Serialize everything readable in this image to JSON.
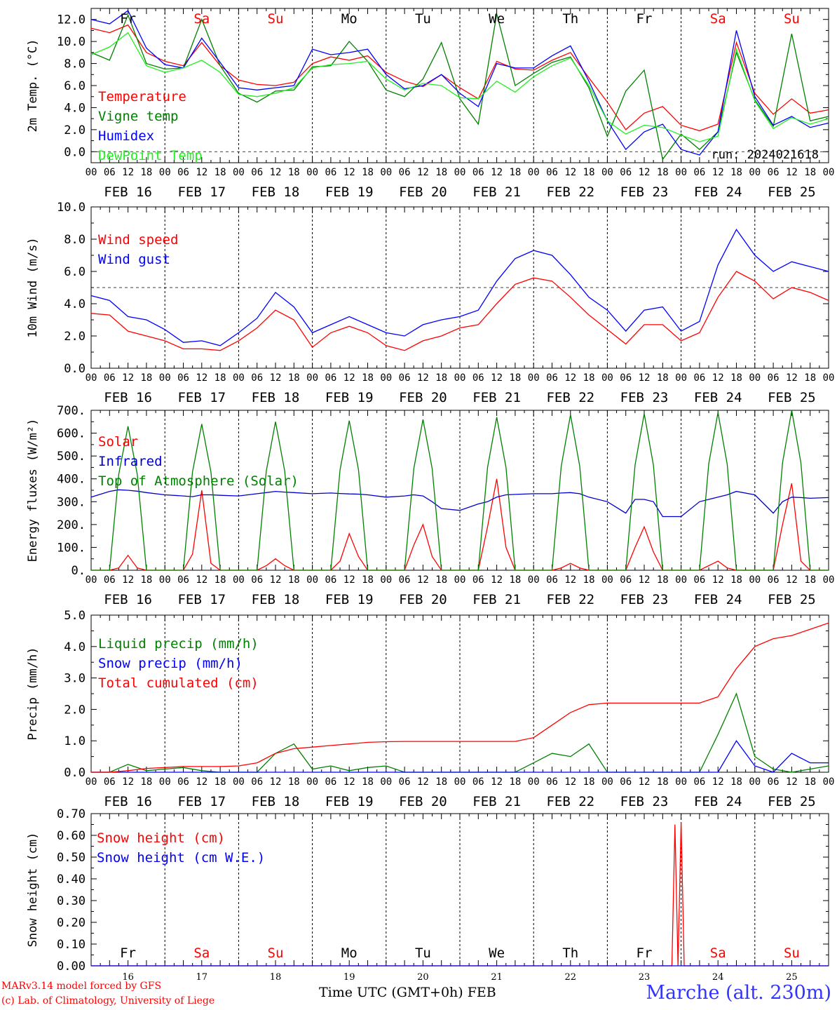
{
  "colors": {
    "red": "#ff0000",
    "green": "#008000",
    "blue": "#0000ff",
    "lightgreen": "#22ee22",
    "darkblue": "#0000cc",
    "purple": "#800080"
  },
  "day_labels": [
    {
      "text": "Fr",
      "color": "#000000"
    },
    {
      "text": "Sa",
      "color": "#ff0000"
    },
    {
      "text": "Su",
      "color": "#ff0000"
    },
    {
      "text": "Mo",
      "color": "#000000"
    },
    {
      "text": "Tu",
      "color": "#000000"
    },
    {
      "text": "We",
      "color": "#000000"
    },
    {
      "text": "Th",
      "color": "#000000"
    },
    {
      "text": "Fr",
      "color": "#000000"
    },
    {
      "text": "Sa",
      "color": "#ff0000"
    },
    {
      "text": "Su",
      "color": "#ff0000"
    }
  ],
  "date_labels": [
    "FEB 16",
    "FEB 17",
    "FEB 18",
    "FEB 19",
    "FEB 20",
    "FEB 21",
    "FEB 22",
    "FEB 23",
    "FEB 24",
    "FEB 25"
  ],
  "hour_ticks": [
    "00",
    "06",
    "12",
    "18"
  ],
  "bottom_dates": [
    "16",
    "17",
    "18",
    "19",
    "20",
    "21",
    "22",
    "23",
    "24",
    "25"
  ],
  "run_label": "run: 2024021618",
  "footer": {
    "credit_line1": "MARv3.14 model forced by GFS",
    "credit_line2": "(c) Lab. of Climatology, University of Liege",
    "xaxis_title": "Time UTC (GMT+0h) FEB",
    "station": "Marche (alt. 230m)"
  },
  "chart_data": [
    {
      "type": "line",
      "ylabel": "2m Temp. (°C)",
      "ylim": [
        -1.0,
        13.0
      ],
      "yticks": [
        "0.0",
        "2.0",
        "4.0",
        "6.0",
        "8.0",
        "10.0",
        "12.0"
      ],
      "x_unit": "hours since FEB 16 00 UTC",
      "x": [
        0,
        6,
        12,
        18,
        24,
        30,
        36,
        42,
        48,
        54,
        60,
        66,
        72,
        78,
        84,
        90,
        96,
        102,
        108,
        114,
        120,
        126,
        132,
        138,
        144,
        150,
        156,
        162,
        168,
        174,
        180,
        186,
        192,
        198,
        204,
        210,
        216,
        222,
        228,
        234,
        240
      ],
      "reference_line": 0,
      "series": [
        {
          "name": "Temperature",
          "color": "#ff0000",
          "values": [
            11.2,
            10.8,
            11.5,
            9.0,
            8.2,
            7.8,
            9.9,
            7.8,
            6.5,
            6.1,
            6.0,
            6.3,
            8.0,
            8.6,
            8.3,
            8.7,
            7.2,
            6.4,
            5.9,
            7.0,
            5.8,
            4.8,
            8.2,
            7.5,
            7.4,
            8.3,
            9.0,
            6.7,
            4.5,
            2.0,
            3.5,
            4.1,
            2.4,
            1.9,
            2.5,
            9.9,
            5.3,
            3.4,
            4.8,
            3.5,
            3.8
          ]
        },
        {
          "name": "Vigne temp",
          "color": "#008000",
          "values": [
            9.0,
            8.3,
            12.4,
            8.0,
            7.5,
            7.6,
            12.0,
            7.8,
            5.3,
            4.5,
            5.5,
            5.6,
            7.7,
            7.8,
            10.0,
            8.2,
            5.6,
            5.0,
            6.6,
            9.9,
            4.8,
            2.5,
            12.5,
            6.0,
            7.1,
            8.1,
            8.6,
            5.8,
            1.4,
            5.5,
            7.4,
            -0.7,
            1.6,
            0.2,
            1.8,
            9.0,
            4.7,
            2.3,
            10.7,
            2.8,
            3.2
          ]
        },
        {
          "name": "Humidex",
          "color": "#0000ff",
          "values": [
            12.0,
            11.6,
            12.8,
            9.4,
            7.9,
            7.6,
            10.3,
            8.1,
            5.8,
            5.6,
            5.8,
            6.0,
            9.3,
            8.8,
            9.0,
            9.3,
            7.0,
            5.7,
            6.0,
            7.0,
            5.3,
            4.1,
            8.0,
            7.6,
            7.6,
            8.7,
            9.6,
            6.4,
            2.8,
            0.2,
            1.8,
            2.5,
            0.2,
            -0.3,
            1.8,
            11.0,
            5.0,
            2.4,
            3.2,
            2.2,
            2.6
          ]
        },
        {
          "name": "DewPoint Temp",
          "color": "#22ee22",
          "values": [
            8.8,
            9.5,
            10.8,
            7.8,
            7.2,
            7.6,
            8.3,
            7.2,
            5.2,
            5.0,
            5.3,
            5.8,
            7.6,
            7.9,
            8.0,
            8.2,
            6.6,
            5.6,
            6.2,
            6.0,
            4.9,
            4.8,
            6.4,
            5.4,
            6.8,
            7.8,
            8.5,
            6.0,
            2.8,
            1.6,
            2.4,
            2.2,
            1.5,
            0.9,
            1.4,
            9.3,
            4.6,
            2.1,
            3.1,
            2.5,
            3.0
          ]
        }
      ]
    },
    {
      "type": "line",
      "ylabel": "10m Wind (m/s)",
      "ylim": [
        0.0,
        10.0
      ],
      "yticks": [
        "0.0",
        "2.0",
        "4.0",
        "6.0",
        "8.0",
        "10.0"
      ],
      "x_unit": "hours since FEB 16 00 UTC",
      "x": [
        0,
        6,
        12,
        18,
        24,
        30,
        36,
        42,
        48,
        54,
        60,
        66,
        72,
        78,
        84,
        90,
        96,
        102,
        108,
        114,
        120,
        126,
        132,
        138,
        144,
        150,
        156,
        162,
        168,
        174,
        180,
        186,
        192,
        198,
        204,
        210,
        216,
        222,
        228,
        234,
        240
      ],
      "reference_line": 5,
      "series": [
        {
          "name": "Wind speed",
          "color": "#ff0000",
          "values": [
            3.4,
            3.3,
            2.3,
            2.0,
            1.7,
            1.2,
            1.2,
            1.1,
            1.7,
            2.5,
            3.6,
            3.0,
            1.3,
            2.2,
            2.6,
            2.2,
            1.4,
            1.1,
            1.7,
            2.0,
            2.5,
            2.7,
            4.0,
            5.2,
            5.6,
            5.4,
            4.4,
            3.3,
            2.4,
            1.5,
            2.7,
            2.7,
            1.7,
            2.2,
            4.4,
            6.0,
            5.4,
            4.3,
            5.0,
            4.7,
            4.2
          ]
        },
        {
          "name": "Wind gust",
          "color": "#0000ff",
          "values": [
            4.5,
            4.2,
            3.2,
            3.0,
            2.4,
            1.6,
            1.7,
            1.4,
            2.2,
            3.1,
            4.7,
            3.8,
            2.2,
            2.7,
            3.2,
            2.7,
            2.2,
            2.0,
            2.7,
            3.0,
            3.2,
            3.6,
            5.4,
            6.8,
            7.3,
            7.0,
            5.8,
            4.4,
            3.6,
            2.3,
            3.6,
            3.8,
            2.3,
            2.9,
            6.4,
            8.6,
            7.0,
            6.0,
            6.6,
            6.3,
            6.0
          ]
        }
      ]
    },
    {
      "type": "line",
      "ylabel": "Energy fluxes (W/m²)",
      "ylim": [
        0,
        700
      ],
      "yticks": [
        "0.",
        "100.",
        "200.",
        "300.",
        "400.",
        "500.",
        "600.",
        "700."
      ],
      "x_unit": "hours since FEB 16 00 UTC",
      "x": [
        0,
        6,
        9,
        12,
        15,
        18,
        24,
        30,
        33,
        36,
        39,
        42,
        48,
        54,
        57,
        60,
        63,
        66,
        72,
        78,
        81,
        84,
        87,
        90,
        96,
        102,
        105,
        108,
        111,
        114,
        120,
        126,
        129,
        132,
        135,
        138,
        144,
        150,
        153,
        156,
        159,
        162,
        168,
        174,
        177,
        180,
        183,
        186,
        192,
        198,
        201,
        204,
        207,
        210,
        216,
        222,
        225,
        228,
        231,
        234,
        240
      ],
      "series": [
        {
          "name": "Solar",
          "color": "#ff0000",
          "values": [
            0,
            0,
            10,
            65,
            10,
            0,
            0,
            0,
            70,
            350,
            30,
            0,
            0,
            0,
            20,
            50,
            20,
            0,
            0,
            0,
            40,
            160,
            60,
            0,
            0,
            0,
            110,
            200,
            60,
            0,
            0,
            0,
            190,
            400,
            100,
            0,
            0,
            0,
            10,
            30,
            10,
            0,
            0,
            0,
            100,
            190,
            80,
            0,
            0,
            0,
            20,
            40,
            10,
            0,
            0,
            0,
            200,
            380,
            40,
            0,
            0
          ]
        },
        {
          "name": "Infrared",
          "color": "#0000cc",
          "values": [
            320,
            345,
            352,
            350,
            346,
            340,
            330,
            325,
            322,
            330,
            330,
            328,
            325,
            335,
            340,
            345,
            342,
            340,
            335,
            338,
            336,
            334,
            333,
            330,
            320,
            325,
            330,
            325,
            300,
            270,
            262,
            290,
            300,
            320,
            330,
            332,
            335,
            335,
            338,
            340,
            335,
            320,
            300,
            250,
            310,
            310,
            300,
            235,
            235,
            300,
            310,
            320,
            330,
            345,
            330,
            250,
            300,
            320,
            318,
            315,
            318
          ]
        },
        {
          "name": "Top of Atmosphere (Solar)",
          "color": "#008000",
          "values": [
            0,
            0,
            420,
            630,
            420,
            0,
            0,
            0,
            430,
            640,
            430,
            0,
            0,
            0,
            435,
            650,
            435,
            0,
            0,
            0,
            440,
            655,
            440,
            0,
            0,
            0,
            445,
            660,
            445,
            0,
            0,
            0,
            450,
            670,
            450,
            0,
            0,
            0,
            455,
            680,
            455,
            0,
            0,
            0,
            460,
            685,
            460,
            0,
            0,
            0,
            465,
            690,
            465,
            0,
            0,
            0,
            470,
            700,
            470,
            0,
            0
          ]
        }
      ]
    },
    {
      "type": "line",
      "ylabel": "Precip (mm/h)",
      "ylim": [
        0.0,
        5.0
      ],
      "yticks": [
        "0.0",
        "1.0",
        "2.0",
        "3.0",
        "4.0",
        "5.0"
      ],
      "x_unit": "hours since FEB 16 00 UTC",
      "x": [
        0,
        6,
        12,
        18,
        24,
        30,
        36,
        42,
        48,
        54,
        60,
        66,
        72,
        78,
        84,
        90,
        96,
        102,
        108,
        114,
        120,
        126,
        132,
        138,
        144,
        150,
        156,
        162,
        168,
        174,
        180,
        186,
        192,
        198,
        204,
        210,
        216,
        222,
        228,
        234,
        240
      ],
      "series": [
        {
          "name": "Liquid precip (mm/h)",
          "color": "#008000",
          "values": [
            0,
            0,
            0.25,
            0.05,
            0.1,
            0.15,
            0.05,
            0,
            0,
            0,
            0.6,
            0.9,
            0.1,
            0.2,
            0.05,
            0.15,
            0.2,
            0,
            0,
            0,
            0,
            0,
            0,
            0,
            0.3,
            0.6,
            0.5,
            0.9,
            0,
            0,
            0,
            0,
            0,
            0,
            1.2,
            2.5,
            0.5,
            0.1,
            0,
            0.1,
            0.2
          ]
        },
        {
          "name": "Snow precip (mm/h)",
          "color": "#0000ff",
          "values": [
            0,
            0,
            0,
            0,
            0,
            0,
            0,
            0,
            0,
            0,
            0,
            0,
            0,
            0,
            0,
            0,
            0,
            0,
            0,
            0,
            0,
            0,
            0,
            0,
            0,
            0,
            0,
            0,
            0,
            0,
            0,
            0,
            0,
            0,
            0,
            1.0,
            0.2,
            0,
            0.6,
            0.3,
            0.3
          ]
        },
        {
          "name": "Total cumulated (cm)",
          "color": "#ff0000",
          "values": [
            0,
            0,
            0.05,
            0.12,
            0.15,
            0.18,
            0.18,
            0.18,
            0.2,
            0.3,
            0.6,
            0.75,
            0.8,
            0.85,
            0.9,
            0.95,
            0.97,
            0.98,
            0.98,
            0.98,
            0.98,
            0.98,
            0.98,
            0.98,
            1.1,
            1.5,
            1.9,
            2.15,
            2.2,
            2.2,
            2.2,
            2.2,
            2.2,
            2.2,
            2.4,
            3.3,
            4.0,
            4.25,
            4.35,
            4.55,
            4.75
          ]
        }
      ]
    },
    {
      "type": "line",
      "ylabel": "Snow height (cm)",
      "ylim": [
        0.0,
        0.7
      ],
      "yticks": [
        "0.00",
        "0.10",
        "0.20",
        "0.30",
        "0.40",
        "0.50",
        "0.60",
        "0.70"
      ],
      "x_unit": "hours since FEB 16 00 UTC",
      "x": [
        0,
        189,
        190,
        191,
        192,
        193,
        194,
        240
      ],
      "series": [
        {
          "name": "Snow height (cm)",
          "color": "#ff0000",
          "values": [
            0,
            0,
            0.65,
            0,
            0.66,
            0,
            0,
            0
          ]
        },
        {
          "name": "Snow height (cm W.E.)",
          "color": "#0000ff",
          "values": [
            0,
            0,
            0,
            0,
            0,
            0,
            0,
            0
          ]
        }
      ]
    }
  ]
}
